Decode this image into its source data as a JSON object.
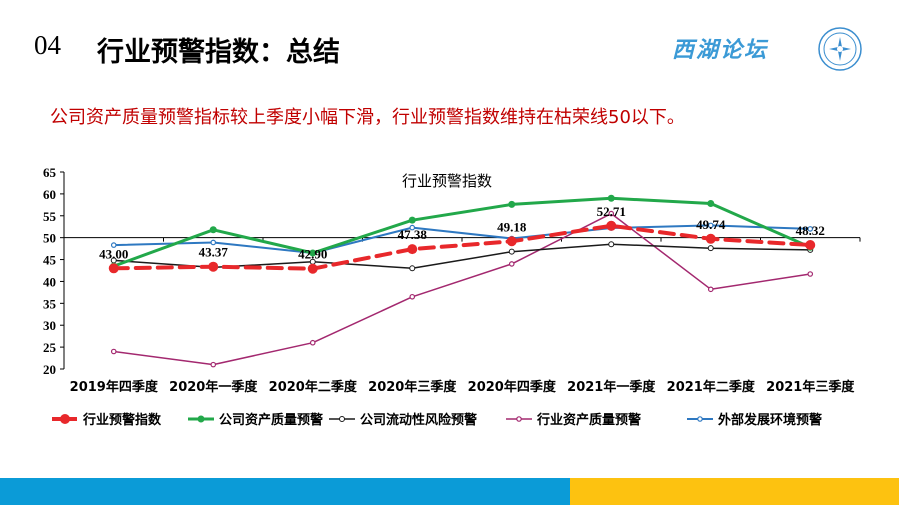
{
  "slide": {
    "number": "04",
    "title": "行业预警指数：总结",
    "logo_text": "西湖论坛",
    "summary": "公司资产质量预警指标较上季度小幅下滑，行业预警指数维持在枯荣线50以下。"
  },
  "colors": {
    "industry_index": "#e8282b",
    "company_asset": "#22a84a",
    "company_liquidity": "#1a1a1a",
    "industry_asset": "#a3286f",
    "external_env": "#2e78c1",
    "bottom_bar_blue": "#0b9bd7",
    "bottom_bar_yellow": "#fdc210"
  },
  "chart_data": {
    "type": "line",
    "title": "行业预警指数",
    "categories": [
      "2019年四季度",
      "2020年一季度",
      "2020年二季度",
      "2020年三季度",
      "2020年四季度",
      "2021年一季度",
      "2021年二季度",
      "2021年三季度"
    ],
    "ylim": [
      20,
      65
    ],
    "yticks": [
      "20",
      "25",
      "30",
      "35",
      "40",
      "45",
      "50",
      "55",
      "60",
      "65"
    ],
    "reference_line": 50,
    "legend_position": "bottom",
    "series": [
      {
        "name": "行业预警指数",
        "values": [
          43.0,
          43.37,
          42.9,
          47.38,
          49.18,
          52.71,
          49.74,
          48.32
        ],
        "labels": [
          "43.00",
          "43.37",
          "42.90",
          "47.38",
          "49.18",
          "52.71",
          "49.74",
          "48.32"
        ],
        "style": "dashed"
      },
      {
        "name": "公司资产质量预警",
        "values": [
          43.5,
          51.8,
          46.5,
          54.0,
          57.6,
          59.0,
          57.8,
          47.8
        ]
      },
      {
        "name": "公司流动性风险预警",
        "values": [
          44.8,
          43.2,
          44.5,
          43.0,
          46.8,
          48.5,
          47.6,
          47.2
        ]
      },
      {
        "name": "行业资产质量预警",
        "values": [
          24.0,
          21.0,
          26.0,
          36.5,
          44.0,
          55.5,
          38.2,
          41.7
        ]
      },
      {
        "name": "外部发展环境预警",
        "values": [
          48.3,
          48.9,
          46.5,
          52.3,
          49.8,
          52.2,
          52.8,
          52.0
        ]
      }
    ]
  }
}
